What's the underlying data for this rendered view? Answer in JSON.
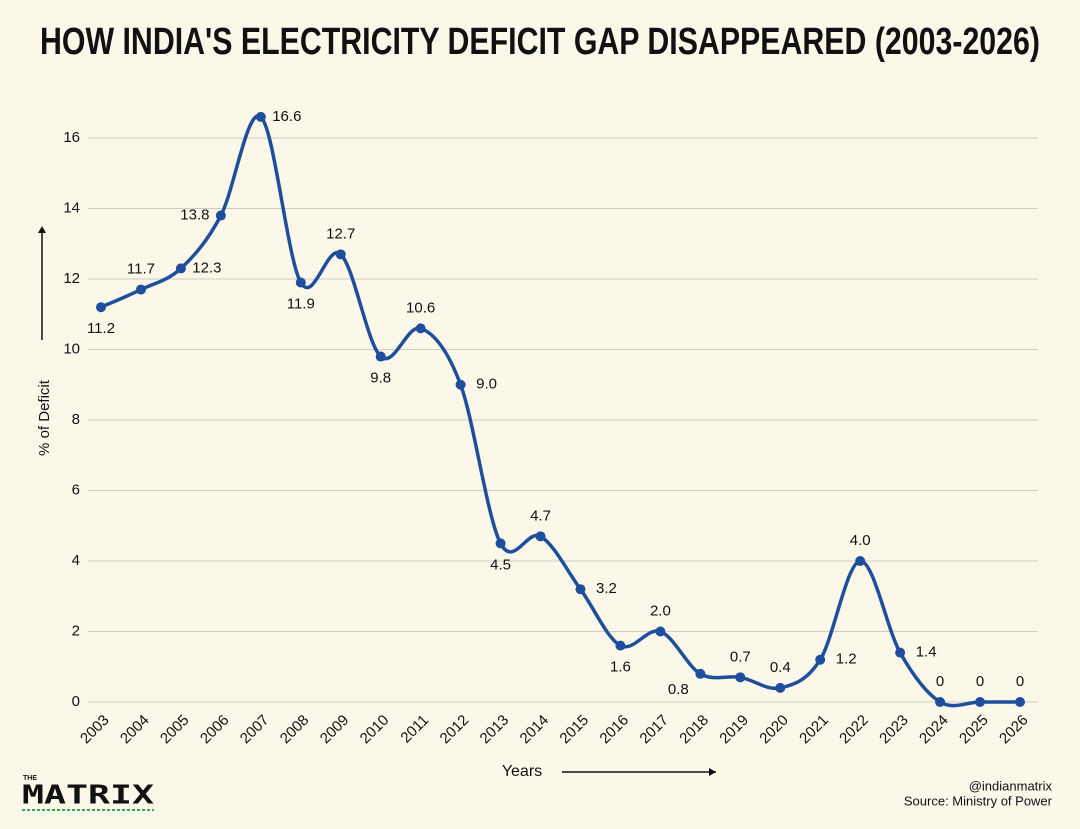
{
  "chart_data": {
    "type": "line",
    "title": "HOW INDIA'S ELECTRICITY DEFICIT GAP DISAPPEARED (2003-2026)",
    "x_label": "Years",
    "y_label": "% of Deficit",
    "categories": [
      "2003",
      "2004",
      "2005",
      "2006",
      "2007",
      "2008",
      "2009",
      "2010",
      "2011",
      "2012",
      "2013",
      "2014",
      "2015",
      "2016",
      "2017",
      "2018",
      "2019",
      "2020",
      "2021",
      "2022",
      "2023",
      "2024",
      "2025",
      "2026"
    ],
    "series": [
      {
        "name": "% of Deficit",
        "color": "#1f4e9c",
        "values": [
          11.2,
          11.7,
          12.3,
          13.8,
          16.6,
          11.9,
          12.7,
          9.8,
          10.6,
          9.0,
          4.5,
          4.7,
          3.2,
          1.6,
          2.0,
          0.8,
          0.7,
          0.4,
          1.2,
          4.0,
          1.4,
          0,
          0,
          0
        ],
        "value_labels": [
          "11.2",
          "11.7",
          "12.3",
          "13.8",
          "16.6",
          "11.9",
          "12.7",
          "9.8",
          "10.6",
          "9.0",
          "4.5",
          "4.7",
          "3.2",
          "1.6",
          "2.0",
          "0.8",
          "0.7",
          "0.4",
          "1.2",
          "4.0",
          "1.4",
          "0",
          "0",
          "0"
        ]
      }
    ],
    "ylim": [
      0,
      17
    ],
    "yticks": [
      0,
      2,
      4,
      6,
      8,
      10,
      12,
      14,
      16
    ],
    "grid": true,
    "logo": {
      "top": "THE",
      "main": "MATRIX"
    },
    "handle": "@indianmatrix",
    "source": "Source: Ministry of Power"
  }
}
